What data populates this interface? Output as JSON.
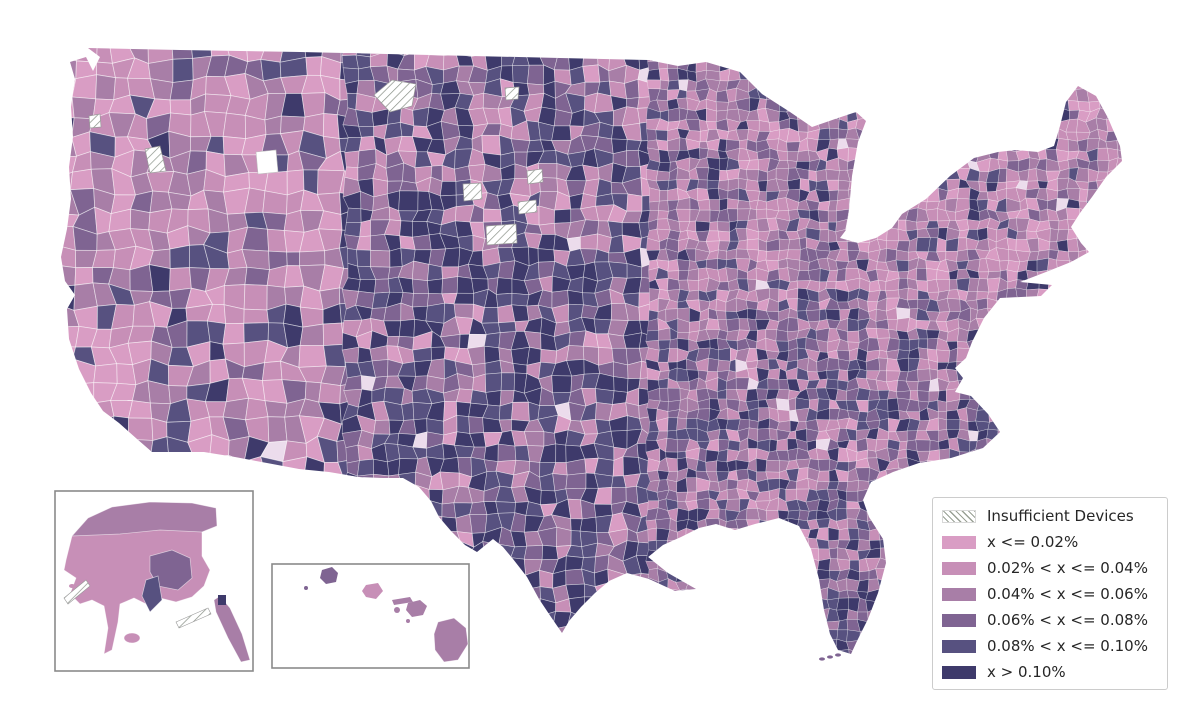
{
  "figure": {
    "type": "choropleth",
    "background": "#ffffff",
    "county_edge_color": "#ffffff",
    "inset_border_color": "#8a8a8a",
    "hatch_line_color": "#8b9289"
  },
  "legend": {
    "background": "#ffffff",
    "border_color": "#cccccc",
    "items": [
      {
        "label": "Insufficient Devices",
        "swatch": "hatch"
      },
      {
        "label": "x <= 0.02%",
        "swatch": "color",
        "color": "#d99dc4"
      },
      {
        "label": "0.02% < x <= 0.04%",
        "swatch": "color",
        "color": "#c78fb7"
      },
      {
        "label": "0.04% < x <= 0.06%",
        "swatch": "color",
        "color": "#a87ea7"
      },
      {
        "label": "0.06% < x <= 0.08%",
        "swatch": "color",
        "color": "#7f6492"
      },
      {
        "label": "0.08% < x <= 0.10%",
        "swatch": "color",
        "color": "#575180"
      },
      {
        "label": "x > 0.10%",
        "swatch": "color",
        "color": "#3e3a6b"
      }
    ]
  },
  "chart_data": {
    "type": "choropleth",
    "region": "United States counties with Alaska and Hawaii insets",
    "bins": [
      "x <= 0.02%",
      "0.02% < x <= 0.04%",
      "0.04% < x <= 0.06%",
      "0.06% < x <= 0.08%",
      "0.08% < x <= 0.10%",
      "x > 0.10%"
    ],
    "bin_colors": [
      "#d99dc4",
      "#c78fb7",
      "#a87ea7",
      "#7f6492",
      "#575180",
      "#3e3a6b"
    ],
    "no_data_category": "Insufficient Devices"
  },
  "map": {
    "insufficient_patches": [
      "374,95 392,80 416,84 412,106 390,112",
      "505,88 519,87 518,99 506,100",
      "89,116 100,114 101,127 90,128",
      "145,149 160,146 166,171 150,173",
      "463,184 481,183 482,199 464,201",
      "486,226 516,224 517,243 487,245",
      "518,202 536,200 537,212 519,214",
      "527,171 542,169 543,182 528,184"
    ],
    "alaska_patches": [
      "64,598 86,580 90,586 68,604",
      "176,622 208,608 211,614 179,628"
    ]
  }
}
